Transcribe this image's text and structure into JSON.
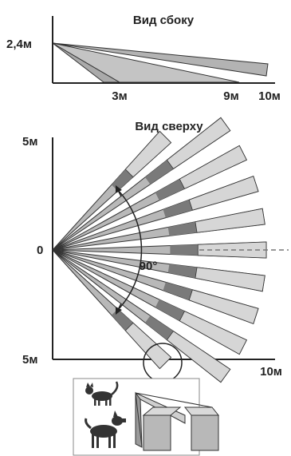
{
  "side_view": {
    "title": "Вид сбоку",
    "height_label": "2,4м",
    "tick_labels": [
      "3м",
      "9м",
      "10м"
    ]
  },
  "top_view": {
    "title": "Вид сверху",
    "y_top_label": "5м",
    "y_mid_label": "0",
    "y_bottom_label": "5м",
    "x_end_label": "10м",
    "angle_label": "90°"
  },
  "illustration": {
    "animals": [
      "cat-icon",
      "dog-icon"
    ]
  },
  "colors": {
    "zone_fill": "#b8b8b8",
    "zone_dark": "#7a7a7a",
    "zone_light": "#d6d6d6",
    "ink": "#222222"
  }
}
